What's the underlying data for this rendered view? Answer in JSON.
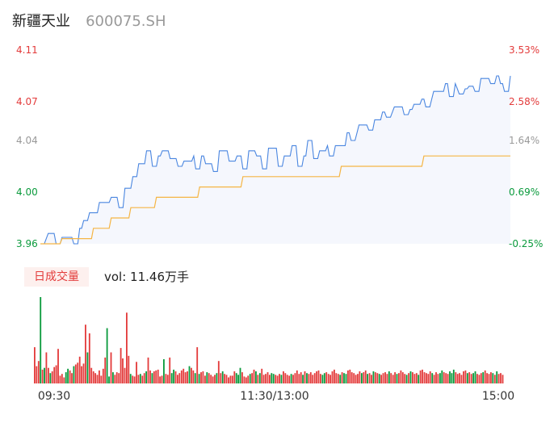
{
  "header": {
    "name": "新疆天业",
    "code": "600075.SH"
  },
  "volume_panel": {
    "badge": "日成交量",
    "label": "vol: 11.46万手"
  },
  "colors": {
    "up": "#e33b3b",
    "down": "#0a9a3c",
    "flat": "#999999",
    "price_line": "#4a86e0",
    "avg_line": "#f5b544",
    "fill": "#f5f7fd"
  },
  "chart_data": [
    {
      "type": "line",
      "ylim": [
        3.96,
        4.11
      ],
      "y_ticks": [
        {
          "value": 4.11,
          "label": "4.11",
          "pct": "3.53%",
          "dir": "up"
        },
        {
          "value": 4.07,
          "label": "4.07",
          "pct": "2.58%",
          "dir": "up"
        },
        {
          "value": 4.04,
          "label": "4.04",
          "pct": "1.64%",
          "dir": "flat"
        },
        {
          "value": 4.0,
          "label": "4.00",
          "pct": "0.69%",
          "dir": "down"
        },
        {
          "value": 3.96,
          "label": "3.96",
          "pct": "-0.25%",
          "dir": "down"
        }
      ],
      "x_ticks": [
        "09:30",
        "11:30/13:00",
        "15:00"
      ],
      "points": 240,
      "price_steps": [
        [
          0,
          3.96
        ],
        [
          3,
          3.964
        ],
        [
          4,
          3.968
        ],
        [
          10,
          3.965
        ],
        [
          20,
          3.972
        ],
        [
          22,
          3.978
        ],
        [
          25,
          3.984
        ],
        [
          30,
          3.992
        ],
        [
          36,
          3.996
        ],
        [
          42,
          4.003
        ],
        [
          47,
          4.012
        ],
        [
          50,
          4.022
        ],
        [
          54,
          4.032
        ],
        [
          58,
          4.028
        ],
        [
          62,
          4.032
        ],
        [
          66,
          4.026
        ],
        [
          72,
          4.024
        ],
        [
          78,
          4.028
        ],
        [
          84,
          4.022
        ],
        [
          90,
          4.032
        ],
        [
          96,
          4.024
        ],
        [
          100,
          4.028
        ],
        [
          104,
          4.032
        ],
        [
          110,
          4.028
        ],
        [
          116,
          4.034
        ],
        [
          122,
          4.028
        ],
        [
          128,
          4.036
        ],
        [
          132,
          4.028
        ],
        [
          136,
          4.04
        ],
        [
          140,
          4.032
        ],
        [
          146,
          4.036
        ],
        [
          150,
          4.036
        ],
        [
          156,
          4.046
        ],
        [
          162,
          4.052
        ],
        [
          168,
          4.056
        ],
        [
          174,
          4.062
        ],
        [
          180,
          4.066
        ],
        [
          186,
          4.064
        ],
        [
          190,
          4.068
        ],
        [
          194,
          4.072
        ],
        [
          200,
          4.078
        ],
        [
          206,
          4.084
        ],
        [
          212,
          4.08
        ],
        [
          218,
          4.082
        ],
        [
          224,
          4.088
        ],
        [
          230,
          4.09
        ],
        [
          234,
          4.084
        ],
        [
          238,
          4.09
        ]
      ],
      "price_dips": [
        [
          8,
          3.96
        ],
        [
          17,
          3.96
        ],
        [
          40,
          3.988
        ],
        [
          57,
          4.02
        ],
        [
          70,
          4.02
        ],
        [
          79,
          4.018
        ],
        [
          88,
          4.016
        ],
        [
          103,
          4.018
        ],
        [
          113,
          4.018
        ],
        [
          121,
          4.02
        ],
        [
          131,
          4.02
        ],
        [
          139,
          4.026
        ],
        [
          147,
          4.028
        ],
        [
          158,
          4.04
        ],
        [
          167,
          4.048
        ],
        [
          176,
          4.058
        ],
        [
          185,
          4.06
        ],
        [
          196,
          4.066
        ],
        [
          208,
          4.074
        ],
        [
          213,
          4.076
        ],
        [
          221,
          4.078
        ],
        [
          229,
          4.084
        ],
        [
          236,
          4.078
        ]
      ],
      "avg_steps": [
        [
          0,
          3.96
        ],
        [
          11,
          3.964
        ],
        [
          27,
          3.972
        ],
        [
          36,
          3.98
        ],
        [
          46,
          3.988
        ],
        [
          59,
          3.996
        ],
        [
          81,
          4.004
        ],
        [
          103,
          4.012
        ],
        [
          153,
          4.02
        ],
        [
          195,
          4.028
        ],
        [
          240,
          4.032
        ]
      ]
    },
    {
      "type": "bar",
      "name": "vol",
      "values": [
        4.2,
        2.0,
        2.6,
        10.0,
        1.6,
        1.8,
        3.6,
        1.8,
        1.2,
        1.4,
        1.9,
        2.1,
        4.0,
        0.9,
        1.1,
        0.7,
        1.3,
        1.7,
        1.5,
        1.2,
        2.0,
        2.2,
        2.4,
        3.1,
        2.0,
        2.3,
        6.8,
        3.6,
        5.8,
        1.8,
        1.4,
        1.2,
        1.0,
        1.5,
        0.9,
        1.7,
        3.0,
        6.4,
        0.8,
        3.6,
        1.3,
        1.0,
        1.3,
        1.2,
        4.1,
        2.9,
        1.8,
        8.2,
        3.2,
        1.1,
        0.9,
        0.8,
        2.5,
        1.0,
        1.1,
        0.9,
        1.2,
        1.4,
        3.0,
        1.5,
        1.2,
        1.4,
        1.5,
        1.6,
        0.8,
        0.9,
        2.8,
        1.1,
        1.0,
        3.0,
        1.2,
        1.6,
        1.4,
        1.0,
        1.2,
        1.5,
        1.7,
        1.3,
        1.4,
        2.0,
        1.8,
        1.5,
        1.2,
        4.2,
        1.1,
        1.3,
        1.4,
        0.9,
        1.3,
        1.2,
        1.0,
        0.8,
        1.0,
        1.2,
        2.6,
        1.2,
        1.4,
        1.1,
        1.0,
        0.7,
        0.9,
        0.9,
        1.4,
        1.2,
        1.0,
        1.8,
        1.3,
        0.8,
        0.7,
        0.9,
        1.1,
        1.2,
        1.6,
        1.4,
        1.0,
        1.2,
        1.7,
        1.0,
        1.1,
        1.3,
        1.0,
        1.2,
        1.1,
        1.0,
        0.9,
        1.1,
        1.0,
        1.4,
        1.2,
        1.0,
        0.9,
        1.1,
        1.0,
        1.2,
        1.5,
        1.1,
        1.3,
        1.0,
        1.4,
        1.2,
        1.1,
        1.3,
        1.0,
        1.2,
        1.4,
        1.5,
        1.1,
        1.0,
        1.2,
        1.3,
        1.1,
        1.0,
        1.4,
        1.6,
        1.2,
        1.1,
        1.0,
        1.3,
        1.2,
        1.1,
        1.5,
        1.6,
        1.3,
        1.2,
        1.0,
        1.1,
        1.4,
        1.2,
        1.3,
        1.5,
        1.1,
        1.2,
        1.0,
        1.4,
        1.3,
        1.2,
        1.1,
        1.0,
        1.2,
        1.3,
        1.1,
        1.4,
        1.2,
        1.0,
        1.3,
        1.1,
        1.2,
        1.5,
        1.3,
        1.1,
        1.0,
        1.2,
        1.4,
        1.3,
        1.1,
        1.2,
        1.0,
        1.5,
        1.6,
        1.3,
        1.2,
        1.1,
        1.4,
        1.2,
        1.0,
        1.3,
        1.1,
        1.2,
        1.5,
        1.3,
        1.2,
        1.1,
        1.4,
        1.2,
        1.6,
        1.3,
        1.1,
        1.2,
        1.0,
        1.4,
        1.5,
        1.2,
        1.3,
        1.1,
        1.2,
        1.4,
        1.1,
        1.0,
        1.2,
        1.3,
        1.5,
        1.2,
        1.1,
        1.3,
        1.2,
        1.0,
        1.4,
        1.1,
        1.2,
        1.0
      ]
    }
  ]
}
